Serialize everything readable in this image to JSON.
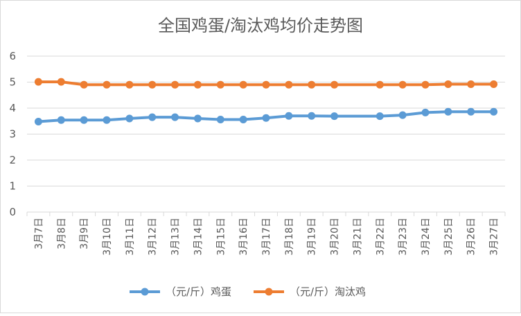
{
  "chart_data": {
    "type": "line",
    "title": "全国鸡蛋/淘汰鸡均价走势图",
    "xlabel": "",
    "ylabel": "",
    "ylim": [
      0,
      6
    ],
    "yticks": [
      "0",
      "1",
      "2",
      "3",
      "4",
      "5",
      "6"
    ],
    "grid": true,
    "legend_position": "bottom",
    "categories": [
      "3月7日",
      "3月8日",
      "3月9日",
      "3月10日",
      "3月11日",
      "3月12日",
      "3月13日",
      "3月14日",
      "3月15日",
      "3月16日",
      "3月17日",
      "3月18日",
      "3月19日",
      "3月20日",
      "3月21日",
      "3月22日",
      "3月23日",
      "3月24日",
      "3月25日",
      "3月26日",
      "3月27日"
    ],
    "series": [
      {
        "name": "（元/斤）鸡蛋",
        "color": "#5b9bd5",
        "values": [
          3.48,
          3.54,
          3.54,
          3.54,
          3.6,
          3.65,
          3.65,
          3.6,
          3.56,
          3.56,
          3.62,
          3.7,
          3.7,
          3.69,
          null,
          3.69,
          3.73,
          3.83,
          3.86,
          3.86,
          3.86
        ]
      },
      {
        "name": "（元/斤）淘汰鸡",
        "color": "#ed7d31",
        "values": [
          5.01,
          5.01,
          4.9,
          4.9,
          4.9,
          4.9,
          4.9,
          4.9,
          4.9,
          4.9,
          4.9,
          4.9,
          4.9,
          4.9,
          null,
          4.9,
          4.9,
          4.9,
          4.92,
          4.92,
          4.92
        ]
      }
    ]
  }
}
